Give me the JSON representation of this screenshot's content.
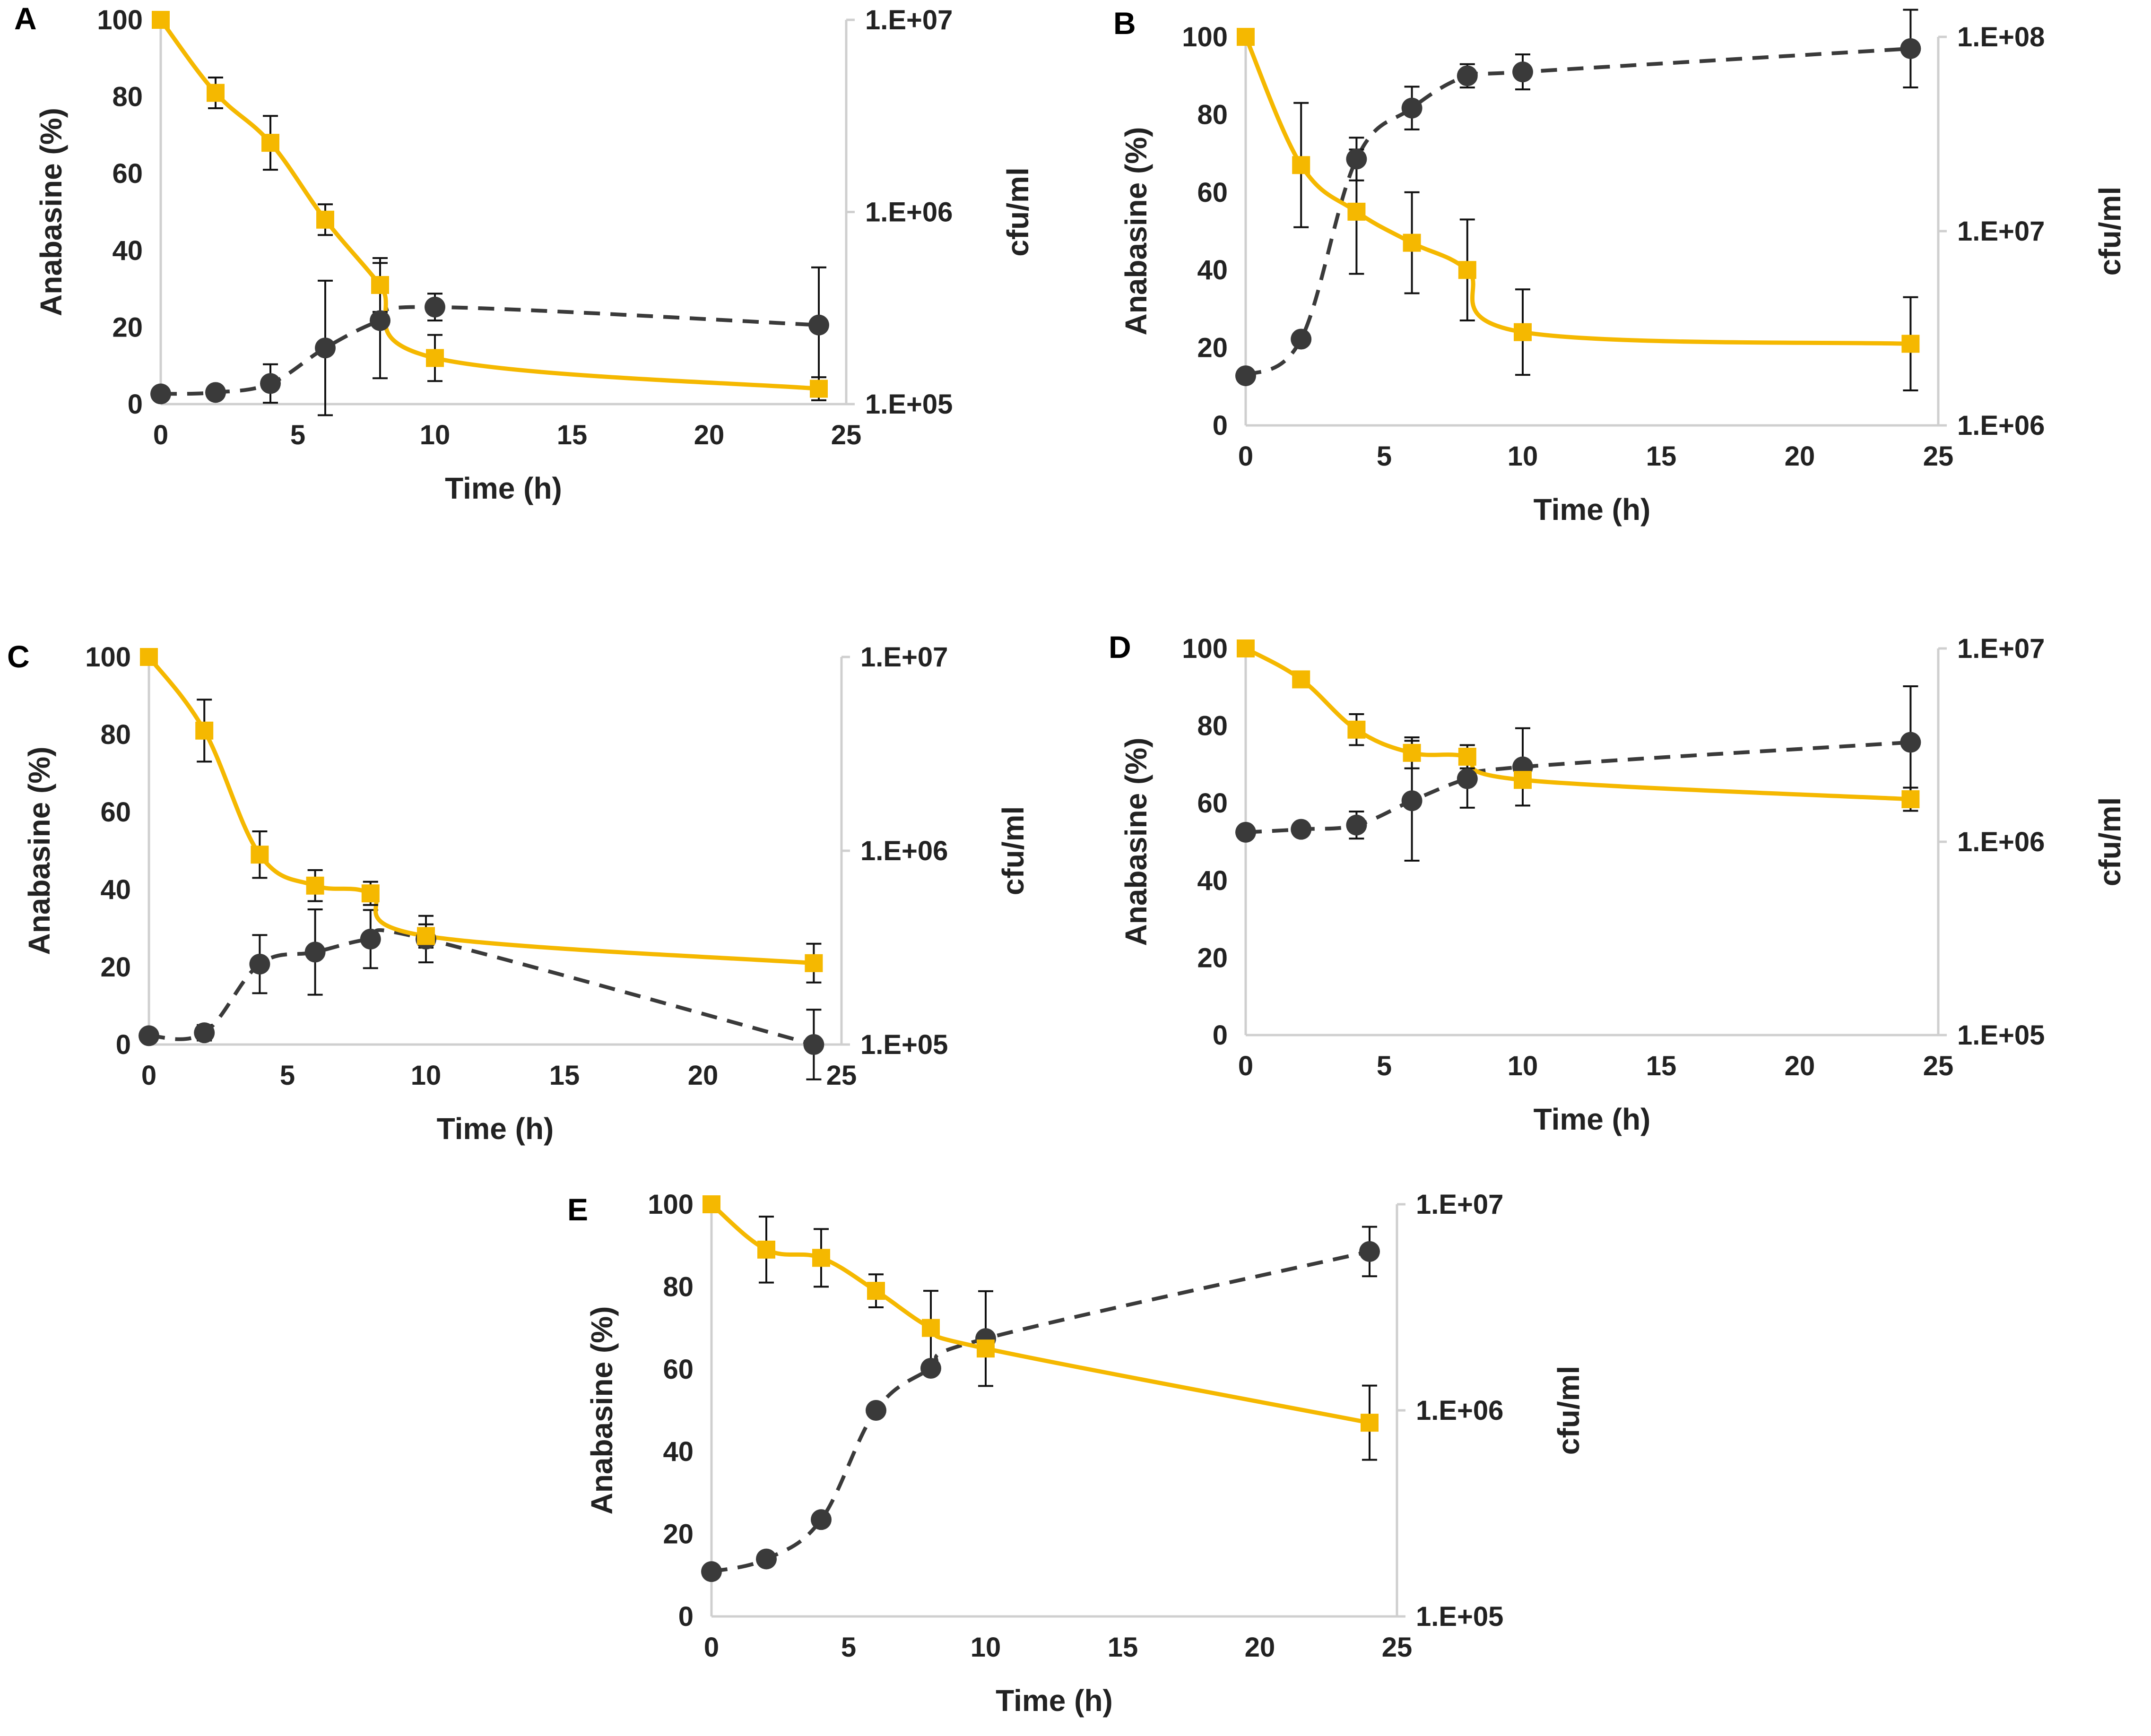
{
  "colors": {
    "anabasine": "#F5B800",
    "cfu": "#3A3A3A",
    "axis": "#CFCFCF",
    "text": "#222222"
  },
  "chart_data": [
    {
      "panel": "A",
      "type": "line",
      "xlabel": "Time (h)",
      "ylabel": "Anabasine (%)",
      "y2label": "cfu/ml",
      "xlim": [
        0,
        25
      ],
      "ylim": [
        0,
        100
      ],
      "y2lim": [
        100000,
        10000000
      ],
      "y2scale": "log",
      "xticks": [
        "0",
        "5",
        "10",
        "15",
        "20",
        "25"
      ],
      "yticks": [
        "0",
        "20",
        "40",
        "60",
        "80",
        "100"
      ],
      "y2ticks": [
        "1.E+05",
        "1.E+06",
        "1.E+07"
      ],
      "x": [
        0,
        2,
        4,
        6,
        8,
        10,
        24
      ],
      "series": [
        {
          "name": "Anabasine (%)",
          "axis": "left",
          "values": [
            100,
            81,
            68,
            48,
            31,
            12,
            4
          ],
          "errors": [
            0,
            4,
            7,
            4,
            7,
            6,
            3
          ]
        },
        {
          "name": "cfu/ml",
          "axis": "right",
          "values": [
            113000,
            115000,
            128000,
            196000,
            272000,
            320000,
            258000
          ],
          "err_logdecades": [
            0,
            0,
            0.1,
            0.35,
            0.3,
            0.07,
            0.3
          ]
        }
      ]
    },
    {
      "panel": "B",
      "type": "line",
      "xlabel": "Time (h)",
      "ylabel": "Anabasine (%)",
      "y2label": "cfu/ml",
      "xlim": [
        0,
        25
      ],
      "ylim": [
        0,
        100
      ],
      "y2lim": [
        1000000,
        100000000
      ],
      "y2scale": "log",
      "xticks": [
        "0",
        "5",
        "10",
        "15",
        "20",
        "25"
      ],
      "yticks": [
        "0",
        "20",
        "40",
        "60",
        "80",
        "100"
      ],
      "y2ticks": [
        "1.E+06",
        "1.E+07",
        "1.E+08"
      ],
      "x": [
        0,
        2,
        4,
        6,
        8,
        10,
        24
      ],
      "series": [
        {
          "name": "Anabasine (%)",
          "axis": "left",
          "values": [
            100,
            67,
            55,
            47,
            40,
            24,
            21
          ],
          "errors": [
            0,
            16,
            16,
            13,
            13,
            11,
            12
          ]
        },
        {
          "name": "cfu/ml",
          "axis": "right",
          "values": [
            1800000,
            2780000,
            23500000,
            43000000,
            63000000,
            66000000,
            87000000
          ],
          "err_logdecades": [
            0,
            0,
            0.11,
            0.11,
            0.06,
            0.09,
            0.2
          ]
        }
      ]
    },
    {
      "panel": "C",
      "type": "line",
      "xlabel": "Time (h)",
      "ylabel": "Anabasine (%)",
      "y2label": "cfu/ml",
      "xlim": [
        0,
        25
      ],
      "ylim": [
        0,
        100
      ],
      "y2lim": [
        100000,
        10000000
      ],
      "y2scale": "log",
      "xticks": [
        "0",
        "5",
        "10",
        "15",
        "20",
        "25"
      ],
      "yticks": [
        "0",
        "20",
        "40",
        "60",
        "80",
        "100"
      ],
      "y2ticks": [
        "1.E+05",
        "1.E+06",
        "1.E+07"
      ],
      "x": [
        0,
        2,
        4,
        6,
        8,
        10,
        24
      ],
      "series": [
        {
          "name": "Anabasine (%)",
          "axis": "left",
          "values": [
            100,
            81,
            49,
            41,
            39,
            28,
            21
          ],
          "errors": [
            0,
            8,
            6,
            4,
            3,
            3,
            5
          ]
        },
        {
          "name": "cfu/ml",
          "axis": "right",
          "values": [
            111000,
            115000,
            260000,
            300000,
            350000,
            350000,
            100000
          ],
          "err_logdecades": [
            0,
            0.04,
            0.15,
            0.22,
            0.15,
            0.12,
            0.18
          ]
        }
      ]
    },
    {
      "panel": "D",
      "type": "line",
      "xlabel": "Time (h)",
      "ylabel": "Anabasine (%)",
      "y2label": "cfu/ml",
      "xlim": [
        0,
        25
      ],
      "ylim": [
        0,
        100
      ],
      "y2lim": [
        100000,
        10000000
      ],
      "y2scale": "log",
      "xticks": [
        "0",
        "5",
        "10",
        "15",
        "20",
        "25"
      ],
      "yticks": [
        "0",
        "20",
        "40",
        "60",
        "80",
        "100"
      ],
      "y2ticks": [
        "1.E+05",
        "1.E+06",
        "1.E+07"
      ],
      "x": [
        0,
        2,
        4,
        6,
        8,
        10,
        24
      ],
      "series": [
        {
          "name": "Anabasine (%)",
          "axis": "left",
          "values": [
            100,
            92,
            79,
            73,
            72,
            66,
            61
          ],
          "errors": [
            0,
            0,
            4,
            4,
            3,
            0,
            3
          ]
        },
        {
          "name": "cfu/ml",
          "axis": "right",
          "values": [
            1120000,
            1160000,
            1220000,
            1630000,
            2120000,
            2440000,
            3270000
          ],
          "err_logdecades": [
            0,
            0,
            0.07,
            0.31,
            0.15,
            0.2,
            0.29
          ]
        }
      ]
    },
    {
      "panel": "E",
      "type": "line",
      "xlabel": "Time (h)",
      "ylabel": "Anabasine (%)",
      "y2label": "cfu/ml",
      "xlim": [
        0,
        25
      ],
      "ylim": [
        0,
        100
      ],
      "y2lim": [
        100000,
        10000000
      ],
      "y2scale": "log",
      "xticks": [
        "0",
        "5",
        "10",
        "15",
        "20",
        "25"
      ],
      "yticks": [
        "0",
        "20",
        "40",
        "60",
        "80",
        "100"
      ],
      "y2ticks": [
        "1.E+05",
        "1.E+06",
        "1.E+07"
      ],
      "x": [
        0,
        2,
        4,
        6,
        8,
        10,
        24
      ],
      "series": [
        {
          "name": "Anabasine (%)",
          "axis": "left",
          "values": [
            100,
            89,
            87,
            79,
            70,
            65,
            47
          ],
          "errors": [
            0,
            8,
            7,
            4,
            9,
            0,
            9
          ]
        },
        {
          "name": "cfu/ml",
          "axis": "right",
          "values": [
            165000,
            190000,
            295000,
            1000000,
            1600000,
            2230000,
            5900000
          ],
          "err_logdecades": [
            0,
            0,
            0,
            0,
            0,
            0.23,
            0.12
          ]
        }
      ]
    }
  ]
}
